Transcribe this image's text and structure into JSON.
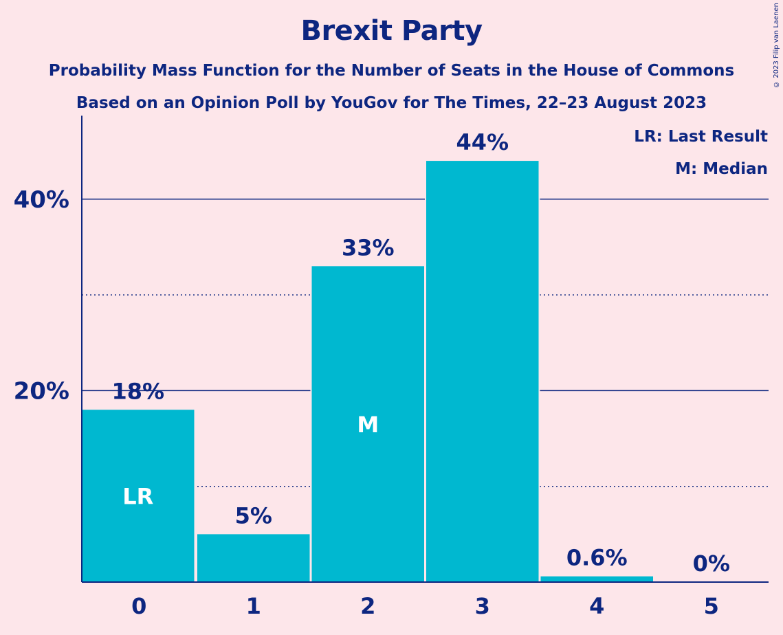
{
  "chart_data": {
    "type": "bar",
    "title": "Brexit Party",
    "subtitle_lines": [
      "Probability Mass Function for the Number of Seats in the House of Commons",
      "Based on an Opinion Poll by YouGov for The Times, 22–23 August 2023"
    ],
    "categories": [
      "0",
      "1",
      "2",
      "3",
      "4",
      "5"
    ],
    "values": [
      18,
      5,
      33,
      44,
      0.6,
      0
    ],
    "value_labels": [
      "18%",
      "5%",
      "33%",
      "44%",
      "0.6%",
      "0%"
    ],
    "bar_annotations": [
      "LR",
      "",
      "M",
      "",
      "",
      ""
    ],
    "ylim": [
      0,
      48
    ],
    "y_ticks": [
      {
        "value": 20,
        "label": "20%"
      },
      {
        "value": 40,
        "label": "40%"
      }
    ],
    "minor_gridlines": [
      10,
      30
    ],
    "legend": {
      "placement": "top-right",
      "entries": [
        "LR: Last Result",
        "M: Median"
      ]
    },
    "colors": {
      "bar": "#00b8d0",
      "text": "#0d2680",
      "background": "#fde6ea"
    },
    "copyright": "© 2023 Filip van Laenen"
  }
}
